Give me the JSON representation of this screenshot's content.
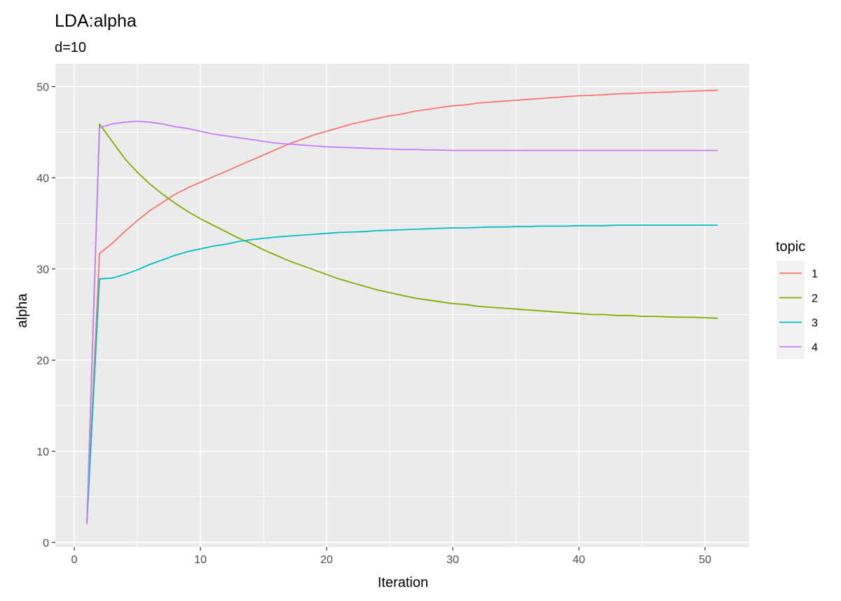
{
  "chart_data": {
    "type": "line",
    "title": "LDA:alpha",
    "subtitle": "d=10",
    "xlabel": "Iteration",
    "ylabel": "alpha",
    "xlim": [
      -1.5,
      53.5
    ],
    "ylim": [
      -0.5,
      52.5
    ],
    "x_ticks": [
      0,
      10,
      20,
      30,
      40,
      50
    ],
    "y_ticks": [
      0,
      10,
      20,
      30,
      40,
      50
    ],
    "grid": true,
    "legend": {
      "title": "topic",
      "position": "right"
    },
    "x": [
      1,
      2,
      3,
      4,
      5,
      6,
      7,
      8,
      9,
      10,
      11,
      12,
      13,
      14,
      15,
      16,
      17,
      18,
      19,
      20,
      21,
      22,
      23,
      24,
      25,
      26,
      27,
      28,
      29,
      30,
      31,
      32,
      33,
      34,
      35,
      36,
      37,
      38,
      39,
      40,
      41,
      42,
      43,
      44,
      45,
      46,
      47,
      48,
      49,
      50,
      51
    ],
    "series": [
      {
        "name": "1",
        "color": "#F8766D",
        "values": [
          2.0,
          31.7,
          32.8,
          34.1,
          35.3,
          36.4,
          37.3,
          38.2,
          38.9,
          39.5,
          40.1,
          40.7,
          41.3,
          41.9,
          42.5,
          43.1,
          43.7,
          44.2,
          44.7,
          45.1,
          45.5,
          45.9,
          46.2,
          46.5,
          46.8,
          47.0,
          47.3,
          47.5,
          47.7,
          47.9,
          48.0,
          48.2,
          48.3,
          48.4,
          48.5,
          48.6,
          48.7,
          48.8,
          48.9,
          49.0,
          49.05,
          49.1,
          49.2,
          49.25,
          49.3,
          49.35,
          49.4,
          49.45,
          49.5,
          49.55,
          49.6
        ]
      },
      {
        "name": "2",
        "color": "#7CAE00",
        "values": [
          2.0,
          45.9,
          44.0,
          42.1,
          40.6,
          39.3,
          38.2,
          37.2,
          36.3,
          35.5,
          34.8,
          34.1,
          33.4,
          32.8,
          32.1,
          31.5,
          30.9,
          30.4,
          29.9,
          29.4,
          28.9,
          28.5,
          28.1,
          27.7,
          27.4,
          27.1,
          26.8,
          26.6,
          26.4,
          26.2,
          26.1,
          25.9,
          25.8,
          25.7,
          25.6,
          25.5,
          25.4,
          25.3,
          25.2,
          25.1,
          25.0,
          25.0,
          24.9,
          24.9,
          24.8,
          24.8,
          24.75,
          24.7,
          24.7,
          24.65,
          24.6
        ]
      },
      {
        "name": "3",
        "color": "#00BFC4",
        "values": [
          2.0,
          28.9,
          29.0,
          29.4,
          29.9,
          30.5,
          31.0,
          31.5,
          31.9,
          32.2,
          32.5,
          32.7,
          33.0,
          33.2,
          33.35,
          33.5,
          33.6,
          33.7,
          33.8,
          33.9,
          34.0,
          34.05,
          34.1,
          34.2,
          34.25,
          34.3,
          34.35,
          34.4,
          34.45,
          34.5,
          34.5,
          34.55,
          34.6,
          34.6,
          34.65,
          34.65,
          34.7,
          34.7,
          34.7,
          34.75,
          34.75,
          34.75,
          34.8,
          34.8,
          34.8,
          34.8,
          34.8,
          34.8,
          34.8,
          34.8,
          34.8
        ]
      },
      {
        "name": "4",
        "color": "#C77CFF",
        "values": [
          2.0,
          45.5,
          45.9,
          46.1,
          46.2,
          46.1,
          45.9,
          45.6,
          45.4,
          45.1,
          44.8,
          44.6,
          44.4,
          44.2,
          44.0,
          43.8,
          43.7,
          43.6,
          43.5,
          43.4,
          43.35,
          43.3,
          43.25,
          43.2,
          43.15,
          43.1,
          43.1,
          43.05,
          43.05,
          43.0,
          43.0,
          43.0,
          43.0,
          43.0,
          43.0,
          43.0,
          43.0,
          43.0,
          43.0,
          43.0,
          43.0,
          43.0,
          43.0,
          43.0,
          43.0,
          43.0,
          43.0,
          43.0,
          43.0,
          43.0,
          43.0
        ]
      }
    ]
  }
}
